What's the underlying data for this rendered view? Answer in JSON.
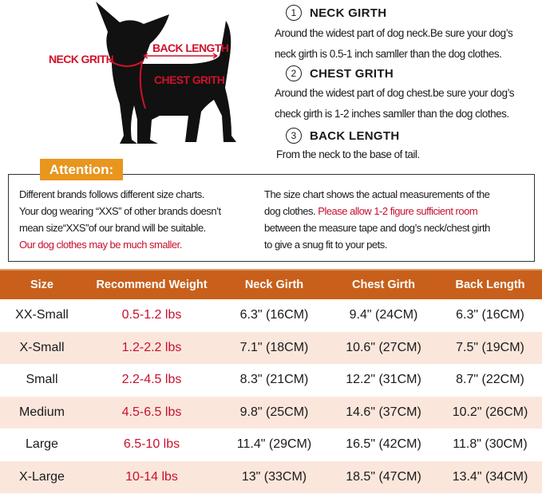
{
  "diagram": {
    "neck_label": "NECK GRITH",
    "back_label": "BACK LENGTH",
    "chest_label": "CHEST GRITH",
    "accent": "#d0112b"
  },
  "steps": [
    {
      "num": "1",
      "title": "NECK GIRTH",
      "lines": [
        "Around the widest part of dog neck.Be sure your dog’s",
        "neck girth is 0.5-1 inch samller than the dog clothes."
      ]
    },
    {
      "num": "2",
      "title": "CHEST GRITH",
      "lines": [
        "Around the widest part of dog chest.be sure your dog’s",
        "check girth is 1-2 inches samller than the dog clothes."
      ]
    },
    {
      "num": "3",
      "title": "BACK LENGTH",
      "lines": [
        "From the neck to the base of tail."
      ]
    }
  ],
  "attention": {
    "tag": "Attention:",
    "left": [
      "Different brands follows different size charts.",
      "Your dog wearing “XXS” of other brands doesn’t",
      "mean size“XXS”of our brand will be suitable."
    ],
    "left_red": "Our dog clothes may be much smaller.",
    "right1": "The size chart shows the actual measurements of the",
    "right2a": "dog clothes.",
    "right2_red": "Please allow 1-2 figure sufficient room",
    "right3": "between the measure tape and dog’s neck/chest girth",
    "right4": "to give a snug fit to your pets.",
    "tag_color": "#e8961e"
  },
  "table": {
    "header_color": "#c8601c",
    "headers": [
      "Size",
      "Recommend Weight",
      "Neck Girth",
      "Chest Girth",
      "Back Length"
    ],
    "rows": [
      [
        "XX-Small",
        "0.5-1.2 lbs",
        "6.3\" (16CM)",
        "9.4\" (24CM)",
        "6.3\" (16CM)"
      ],
      [
        "X-Small",
        "1.2-2.2 lbs",
        "7.1\" (18CM)",
        "10.6\" (27CM)",
        "7.5\" (19CM)"
      ],
      [
        "Small",
        "2.2-4.5 lbs",
        "8.3\" (21CM)",
        "12.2\" (31CM)",
        "8.7\" (22CM)"
      ],
      [
        "Medium",
        "4.5-6.5 lbs",
        "9.8\" (25CM)",
        "14.6\" (37CM)",
        "10.2\" (26CM)"
      ],
      [
        "Large",
        "6.5-10 lbs",
        "11.4\" (29CM)",
        "16.5\" (42CM)",
        "11.8\" (30CM)"
      ],
      [
        "X-Large",
        "10-14 lbs",
        "13\" (33CM)",
        "18.5\" (47CM)",
        "13.4\" (34CM)"
      ]
    ]
  }
}
